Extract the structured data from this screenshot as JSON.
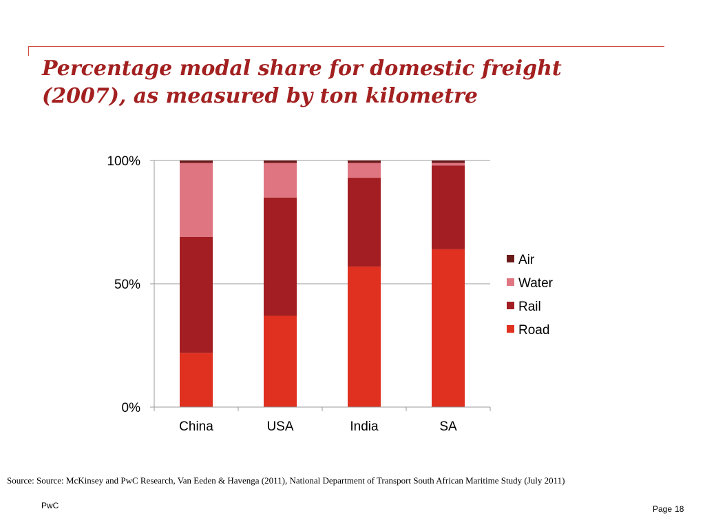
{
  "slide": {
    "title_line1": "Percentage modal share for domestic freight",
    "title_line2": "(2007), as measured by ton kilometre",
    "source": "Source: Source: McKinsey and PwC Research, Van Eeden & Havenga (2011), National Department of Transport South African Maritime Study (July 2011)",
    "footer_brand": "PwC",
    "page_label": "Page",
    "page_number": "18"
  },
  "colors": {
    "accent": "#a32020",
    "rule": "#d24a3c"
  },
  "chart_data": {
    "type": "bar",
    "stacked": true,
    "categories": [
      "China",
      "USA",
      "India",
      "SA"
    ],
    "ylim": [
      0,
      100
    ],
    "yticks": [
      "0%",
      "50%",
      "100%"
    ],
    "ytick_values": [
      0,
      50,
      100
    ],
    "grid": true,
    "legend_position": "right",
    "series": [
      {
        "name": "Road",
        "color": "#df3020",
        "values": [
          22,
          37,
          57,
          64
        ]
      },
      {
        "name": "Rail",
        "color": "#a31e22",
        "values": [
          47,
          48,
          36,
          34
        ]
      },
      {
        "name": "Water",
        "color": "#e07582",
        "values": [
          30,
          14,
          6,
          1
        ]
      },
      {
        "name": "Air",
        "color": "#6b1a1a",
        "values": [
          1,
          1,
          1,
          1
        ]
      }
    ]
  }
}
